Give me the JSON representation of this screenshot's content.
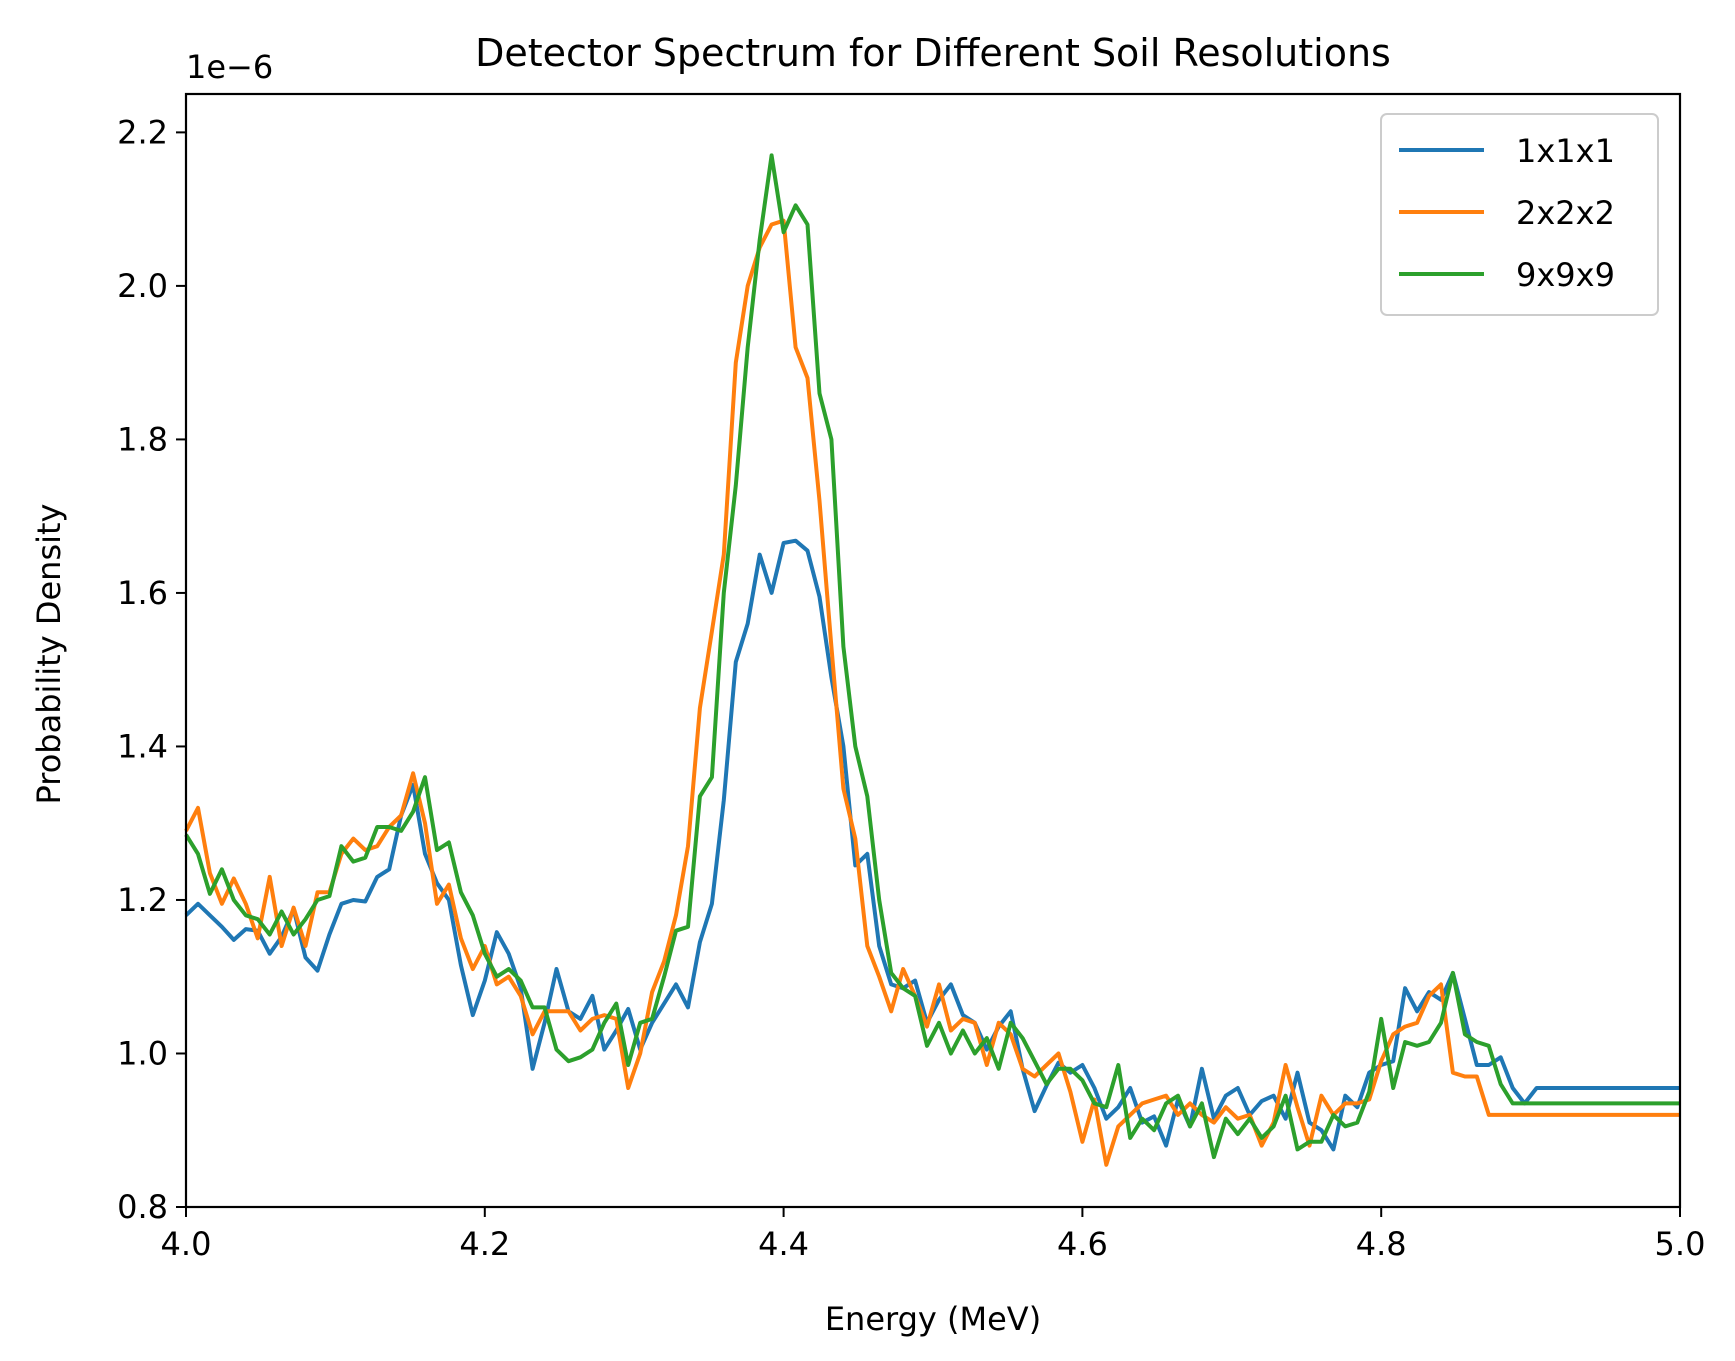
{
  "chart_data": {
    "type": "line",
    "title": "Detector Spectrum for Different Soil Resolutions",
    "xlabel": "Energy (MeV)",
    "ylabel": "Probability Density",
    "y_offset_label": "1e−6",
    "xlim": [
      4.0,
      5.0
    ],
    "ylim": [
      0.8,
      2.25
    ],
    "x_ticks": [
      "4.0",
      "4.2",
      "4.4",
      "4.6",
      "4.8",
      "5.0"
    ],
    "y_ticks": [
      "0.8",
      "1.0",
      "1.2",
      "1.4",
      "1.6",
      "1.8",
      "2.0",
      "2.2"
    ],
    "grid": false,
    "legend_position": "top-right",
    "series": [
      {
        "name": "1x1x1",
        "color": "#1f77b4",
        "x": [
          4.0,
          4.008,
          4.016,
          4.024,
          4.032,
          4.04,
          4.048,
          4.056,
          4.064,
          4.072,
          4.08,
          4.088,
          4.096,
          4.104,
          4.112,
          4.12,
          4.128,
          4.136,
          4.144,
          4.152,
          4.16,
          4.168,
          4.176,
          4.184,
          4.192,
          4.2,
          4.208,
          4.216,
          4.224,
          4.232,
          4.24,
          4.248,
          4.256,
          4.264,
          4.272,
          4.28,
          4.288,
          4.296,
          4.304,
          4.312,
          4.32,
          4.328,
          4.336,
          4.344,
          4.352,
          4.36,
          4.368,
          4.376,
          4.384,
          4.392,
          4.4,
          4.408,
          4.416,
          4.424,
          4.432,
          4.44,
          4.448,
          4.456,
          4.464,
          4.472,
          4.48,
          4.488,
          4.496,
          4.504,
          4.512,
          4.52,
          4.528,
          4.536,
          4.544,
          4.552,
          4.56,
          4.568,
          4.576,
          4.584,
          4.592,
          4.6,
          4.608,
          4.616,
          4.624,
          4.632,
          4.64,
          4.648,
          4.656,
          4.664,
          4.672,
          4.68,
          4.688,
          4.696,
          4.704,
          4.712,
          4.72,
          4.728,
          4.736,
          4.744,
          4.752,
          4.76,
          4.768,
          4.776,
          4.784,
          4.792,
          4.8,
          4.808,
          4.816,
          4.824,
          4.832,
          4.84,
          4.848,
          4.856,
          4.864,
          4.872,
          4.88,
          4.888,
          4.896,
          4.904,
          4.912,
          4.92,
          4.928,
          4.936,
          4.944,
          4.952,
          4.96,
          4.968,
          4.976,
          4.984,
          4.992,
          5.0
        ],
        "values": [
          1.18,
          1.195,
          1.18,
          1.165,
          1.148,
          1.162,
          1.16,
          1.13,
          1.152,
          1.188,
          1.125,
          1.108,
          1.155,
          1.195,
          1.2,
          1.198,
          1.23,
          1.24,
          1.31,
          1.35,
          1.26,
          1.222,
          1.2,
          1.115,
          1.05,
          1.095,
          1.158,
          1.13,
          1.085,
          0.98,
          1.04,
          1.11,
          1.055,
          1.045,
          1.075,
          1.005,
          1.03,
          1.058,
          1.005,
          1.04,
          1.065,
          1.09,
          1.06,
          1.145,
          1.195,
          1.33,
          1.51,
          1.56,
          1.65,
          1.6,
          1.665,
          1.668,
          1.655,
          1.595,
          1.49,
          1.4,
          1.245,
          1.26,
          1.14,
          1.09,
          1.085,
          1.095,
          1.04,
          1.07,
          1.09,
          1.05,
          1.04,
          1.005,
          1.035,
          1.055,
          0.98,
          0.925,
          0.958,
          0.988,
          0.975,
          0.985,
          0.955,
          0.915,
          0.93,
          0.955,
          0.91,
          0.918,
          0.88,
          0.94,
          0.905,
          0.98,
          0.915,
          0.945,
          0.955,
          0.92,
          0.938,
          0.945,
          0.915,
          0.975,
          0.91,
          0.9,
          0.875,
          0.945,
          0.93,
          0.975,
          0.985,
          0.99,
          1.085,
          1.055,
          1.08,
          1.07,
          1.105,
          1.045,
          0.985,
          0.985,
          0.995,
          0.955,
          0.935,
          0.955,
          0.955,
          0.955,
          0.955,
          0.955,
          0.955,
          0.955,
          0.955,
          0.955,
          0.955,
          0.955,
          0.955,
          0.955
        ]
      },
      {
        "name": "2x2x2",
        "color": "#ff7f0e",
        "x": [
          4.0,
          4.008,
          4.016,
          4.024,
          4.032,
          4.04,
          4.048,
          4.056,
          4.064,
          4.072,
          4.08,
          4.088,
          4.096,
          4.104,
          4.112,
          4.12,
          4.128,
          4.136,
          4.144,
          4.152,
          4.16,
          4.168,
          4.176,
          4.184,
          4.192,
          4.2,
          4.208,
          4.216,
          4.224,
          4.232,
          4.24,
          4.248,
          4.256,
          4.264,
          4.272,
          4.28,
          4.288,
          4.296,
          4.304,
          4.312,
          4.32,
          4.328,
          4.336,
          4.344,
          4.352,
          4.36,
          4.368,
          4.376,
          4.384,
          4.392,
          4.4,
          4.408,
          4.416,
          4.424,
          4.432,
          4.44,
          4.448,
          4.456,
          4.464,
          4.472,
          4.48,
          4.488,
          4.496,
          4.504,
          4.512,
          4.52,
          4.528,
          4.536,
          4.544,
          4.552,
          4.56,
          4.568,
          4.576,
          4.584,
          4.592,
          4.6,
          4.608,
          4.616,
          4.624,
          4.632,
          4.64,
          4.648,
          4.656,
          4.664,
          4.672,
          4.68,
          4.688,
          4.696,
          4.704,
          4.712,
          4.72,
          4.728,
          4.736,
          4.744,
          4.752,
          4.76,
          4.768,
          4.776,
          4.784,
          4.792,
          4.8,
          4.808,
          4.816,
          4.824,
          4.832,
          4.84,
          4.848,
          4.856,
          4.864,
          4.872,
          4.88,
          4.888,
          4.896,
          4.904,
          4.912,
          4.92,
          4.928,
          4.936,
          4.944,
          4.952,
          4.96,
          4.968,
          4.976,
          4.984,
          4.992,
          5.0
        ],
        "values": [
          1.29,
          1.32,
          1.235,
          1.195,
          1.228,
          1.195,
          1.15,
          1.23,
          1.14,
          1.19,
          1.14,
          1.21,
          1.21,
          1.26,
          1.28,
          1.265,
          1.27,
          1.295,
          1.31,
          1.365,
          1.3,
          1.195,
          1.22,
          1.15,
          1.11,
          1.14,
          1.09,
          1.1,
          1.075,
          1.025,
          1.055,
          1.055,
          1.055,
          1.03,
          1.045,
          1.05,
          1.045,
          0.955,
          1.0,
          1.08,
          1.12,
          1.18,
          1.27,
          1.45,
          1.55,
          1.65,
          1.9,
          2.0,
          2.05,
          2.08,
          2.085,
          1.92,
          1.88,
          1.72,
          1.53,
          1.345,
          1.28,
          1.14,
          1.1,
          1.055,
          1.11,
          1.075,
          1.035,
          1.09,
          1.03,
          1.045,
          1.04,
          0.985,
          1.04,
          1.025,
          0.98,
          0.97,
          0.985,
          1.0,
          0.95,
          0.885,
          0.94,
          0.855,
          0.905,
          0.92,
          0.935,
          0.94,
          0.945,
          0.92,
          0.935,
          0.92,
          0.91,
          0.93,
          0.915,
          0.92,
          0.88,
          0.91,
          0.985,
          0.93,
          0.88,
          0.945,
          0.92,
          0.935,
          0.935,
          0.94,
          0.99,
          1.025,
          1.035,
          1.04,
          1.075,
          1.09,
          0.975,
          0.97,
          0.97,
          0.92,
          0.92,
          0.92,
          0.92,
          0.92,
          0.92,
          0.92,
          0.92,
          0.92,
          0.92,
          0.92,
          0.92,
          0.92,
          0.92,
          0.92,
          0.92,
          0.92
        ]
      },
      {
        "name": "9x9x9",
        "color": "#2ca02c",
        "x": [
          4.0,
          4.008,
          4.016,
          4.024,
          4.032,
          4.04,
          4.048,
          4.056,
          4.064,
          4.072,
          4.08,
          4.088,
          4.096,
          4.104,
          4.112,
          4.12,
          4.128,
          4.136,
          4.144,
          4.152,
          4.16,
          4.168,
          4.176,
          4.184,
          4.192,
          4.2,
          4.208,
          4.216,
          4.224,
          4.232,
          4.24,
          4.248,
          4.256,
          4.264,
          4.272,
          4.28,
          4.288,
          4.296,
          4.304,
          4.312,
          4.32,
          4.328,
          4.336,
          4.344,
          4.352,
          4.36,
          4.368,
          4.376,
          4.384,
          4.392,
          4.4,
          4.408,
          4.416,
          4.424,
          4.432,
          4.44,
          4.448,
          4.456,
          4.464,
          4.472,
          4.48,
          4.488,
          4.496,
          4.504,
          4.512,
          4.52,
          4.528,
          4.536,
          4.544,
          4.552,
          4.56,
          4.568,
          4.576,
          4.584,
          4.592,
          4.6,
          4.608,
          4.616,
          4.624,
          4.632,
          4.64,
          4.648,
          4.656,
          4.664,
          4.672,
          4.68,
          4.688,
          4.696,
          4.704,
          4.712,
          4.72,
          4.728,
          4.736,
          4.744,
          4.752,
          4.76,
          4.768,
          4.776,
          4.784,
          4.792,
          4.8,
          4.808,
          4.816,
          4.824,
          4.832,
          4.84,
          4.848,
          4.856,
          4.864,
          4.872,
          4.88,
          4.888,
          4.896,
          4.904,
          4.912,
          4.92,
          4.928,
          4.936,
          4.944,
          4.952,
          4.96,
          4.968,
          4.976,
          4.984,
          4.992,
          5.0
        ],
        "values": [
          1.285,
          1.26,
          1.208,
          1.24,
          1.2,
          1.18,
          1.175,
          1.155,
          1.185,
          1.155,
          1.175,
          1.2,
          1.205,
          1.27,
          1.25,
          1.255,
          1.295,
          1.295,
          1.29,
          1.315,
          1.36,
          1.265,
          1.275,
          1.21,
          1.18,
          1.13,
          1.1,
          1.11,
          1.095,
          1.06,
          1.06,
          1.005,
          0.99,
          0.995,
          1.005,
          1.04,
          1.065,
          0.985,
          1.04,
          1.045,
          1.1,
          1.16,
          1.165,
          1.335,
          1.36,
          1.6,
          1.74,
          1.92,
          2.06,
          2.17,
          2.07,
          2.105,
          2.08,
          1.86,
          1.8,
          1.53,
          1.4,
          1.335,
          1.2,
          1.105,
          1.085,
          1.075,
          1.01,
          1.04,
          1.0,
          1.03,
          1.0,
          1.02,
          0.98,
          1.04,
          1.02,
          0.99,
          0.96,
          0.98,
          0.98,
          0.965,
          0.935,
          0.93,
          0.985,
          0.89,
          0.915,
          0.9,
          0.935,
          0.945,
          0.905,
          0.935,
          0.865,
          0.915,
          0.895,
          0.915,
          0.89,
          0.905,
          0.945,
          0.875,
          0.885,
          0.885,
          0.92,
          0.905,
          0.91,
          0.95,
          1.045,
          0.955,
          1.015,
          1.01,
          1.015,
          1.04,
          1.105,
          1.025,
          1.015,
          1.01,
          0.96,
          0.935,
          0.935,
          0.935,
          0.935,
          0.935,
          0.935,
          0.935,
          0.935,
          0.935,
          0.935,
          0.935,
          0.935,
          0.935,
          0.935,
          0.935
        ]
      }
    ]
  }
}
